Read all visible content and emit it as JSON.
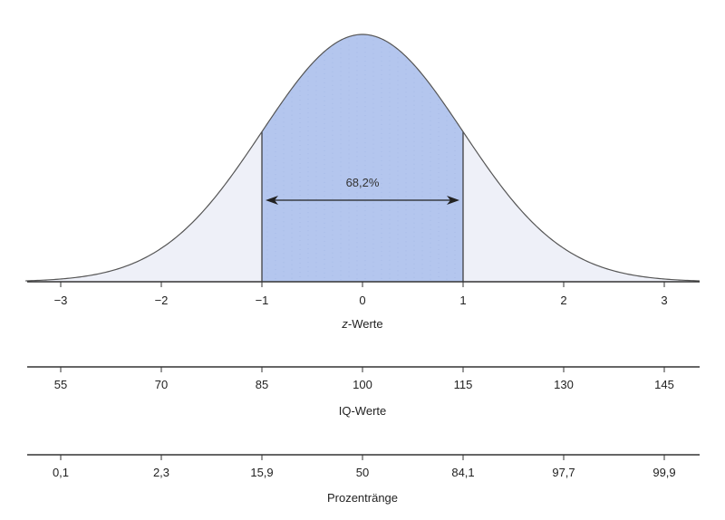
{
  "chart_data": {
    "type": "area",
    "distribution": "normal",
    "shaded_interval": [
      -1,
      1
    ],
    "shaded_label": "68,2%",
    "z_axis": {
      "title_prefix": "z",
      "title_suffix": "-Werte",
      "ticks": [
        -3,
        -2,
        -1,
        0,
        1,
        2,
        3
      ],
      "tick_labels": [
        "−3",
        "−2",
        "−1",
        "0",
        "1",
        "2",
        "3"
      ],
      "range": [
        -3.35,
        3.35
      ]
    },
    "iq_axis": {
      "title": "IQ-Werte",
      "tick_labels": [
        "55",
        "70",
        "85",
        "100",
        "115",
        "130",
        "145"
      ]
    },
    "percentile_axis": {
      "title": "Prozentränge",
      "tick_labels": [
        "0,1",
        "2,3",
        "15,9",
        "50",
        "84,1",
        "97,7",
        "99,9"
      ]
    },
    "colors": {
      "shaded": "#b4c6ee",
      "tails": "#eef0f8",
      "curve": "#555555",
      "axis": "#333333"
    }
  }
}
